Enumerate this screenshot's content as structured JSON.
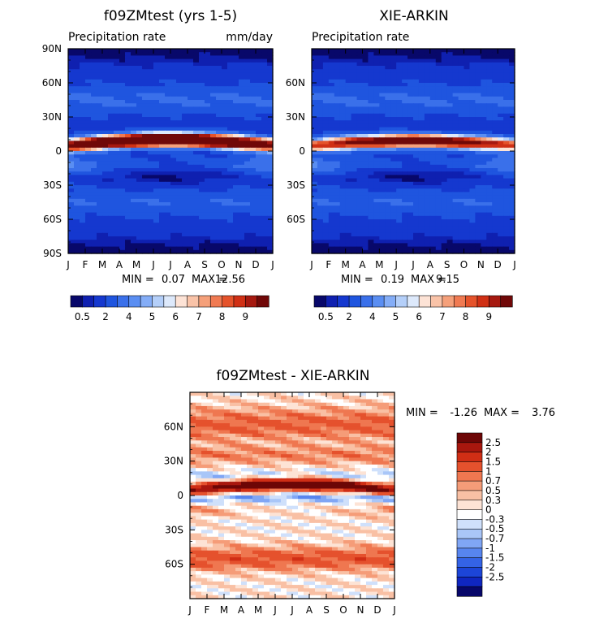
{
  "colors": {
    "abs_scale": [
      "#08086a",
      "#0f20b0",
      "#1538cf",
      "#1f55df",
      "#3a70ea",
      "#5a8ef2",
      "#84adf7",
      "#b4cff9",
      "#dde9fb",
      "#fde3d6",
      "#f9c3a8",
      "#f5a07a",
      "#f07a52",
      "#e5532b",
      "#d03015",
      "#a61910",
      "#700808"
    ],
    "diff_scale": [
      "#07076a",
      "#0f26c0",
      "#1c45d8",
      "#3463e6",
      "#5785ef",
      "#80a6f5",
      "#a9c6f8",
      "#cfe0fb",
      "#ffffff",
      "#fde3d5",
      "#f9c0a4",
      "#f59c78",
      "#ef7750",
      "#e5512d",
      "#d02e15",
      "#a8170e",
      "#6d0606"
    ]
  },
  "months": [
    "J",
    "F",
    "M",
    "A",
    "M",
    "J",
    "J",
    "A",
    "S",
    "O",
    "N",
    "D",
    "J"
  ],
  "lat_ticks_full": [
    "90N",
    "60N",
    "30N",
    "0",
    "30S",
    "60S",
    "90S"
  ],
  "lat_ticks_inner": [
    "60N",
    "30N",
    "0",
    "30S",
    "60S"
  ],
  "chart_data": [
    {
      "type": "heatmap",
      "title": "f09ZMtest (yrs 1-5)",
      "subtitle_left": "Precipitation rate",
      "subtitle_right": "mm/day",
      "x": [
        "J",
        "F",
        "M",
        "A",
        "M",
        "J",
        "J",
        "A",
        "S",
        "O",
        "N",
        "D",
        "J"
      ],
      "y": [
        "90N",
        "60N",
        "30N",
        "0",
        "30S",
        "60S",
        "90S"
      ],
      "stats": {
        "min_label": "MIN =",
        "min": "0.07",
        "max_label": "MAX =",
        "max": "12.56"
      },
      "colorbar": {
        "labels": [
          "0.5",
          "2",
          "4",
          "5",
          "6",
          "7",
          "8",
          "9"
        ]
      },
      "itcz": {
        "lat_start": 5,
        "lat_mid": 10,
        "intensity": 1.0
      }
    },
    {
      "type": "heatmap",
      "title": "XIE-ARKIN",
      "subtitle_left": "Precipitation rate",
      "x": [
        "J",
        "F",
        "M",
        "A",
        "M",
        "J",
        "J",
        "A",
        "S",
        "O",
        "N",
        "D",
        "J"
      ],
      "y": [
        "60N",
        "30N",
        "0",
        "30S",
        "60S"
      ],
      "stats": {
        "min_label": "MIN =",
        "min": "0.19",
        "max_label": "MAX =",
        "max": "9.15"
      },
      "colorbar": {
        "labels": [
          "0.5",
          "2",
          "4",
          "5",
          "6",
          "7",
          "8",
          "9"
        ]
      },
      "itcz": {
        "lat_start": 5,
        "lat_mid": 9,
        "intensity": 0.75
      }
    },
    {
      "type": "heatmap",
      "title": "f09ZMtest - XIE-ARKIN",
      "x": [
        "J",
        "F",
        "M",
        "A",
        "M",
        "J",
        "J",
        "A",
        "S",
        "O",
        "N",
        "D",
        "J"
      ],
      "y": [
        "60N",
        "30N",
        "0",
        "30S",
        "60S"
      ],
      "stats": {
        "min_label": "MIN =",
        "min": "-1.26",
        "max_label": "MAX =",
        "max": "3.76"
      },
      "colorbar": {
        "labels": [
          "2.5",
          "2",
          "1.5",
          "1",
          "0.7",
          "0.5",
          "0.3",
          "0",
          "-0.3",
          "-0.5",
          "-0.7",
          "-1",
          "-1.5",
          "-2",
          "-2.5"
        ]
      }
    }
  ]
}
